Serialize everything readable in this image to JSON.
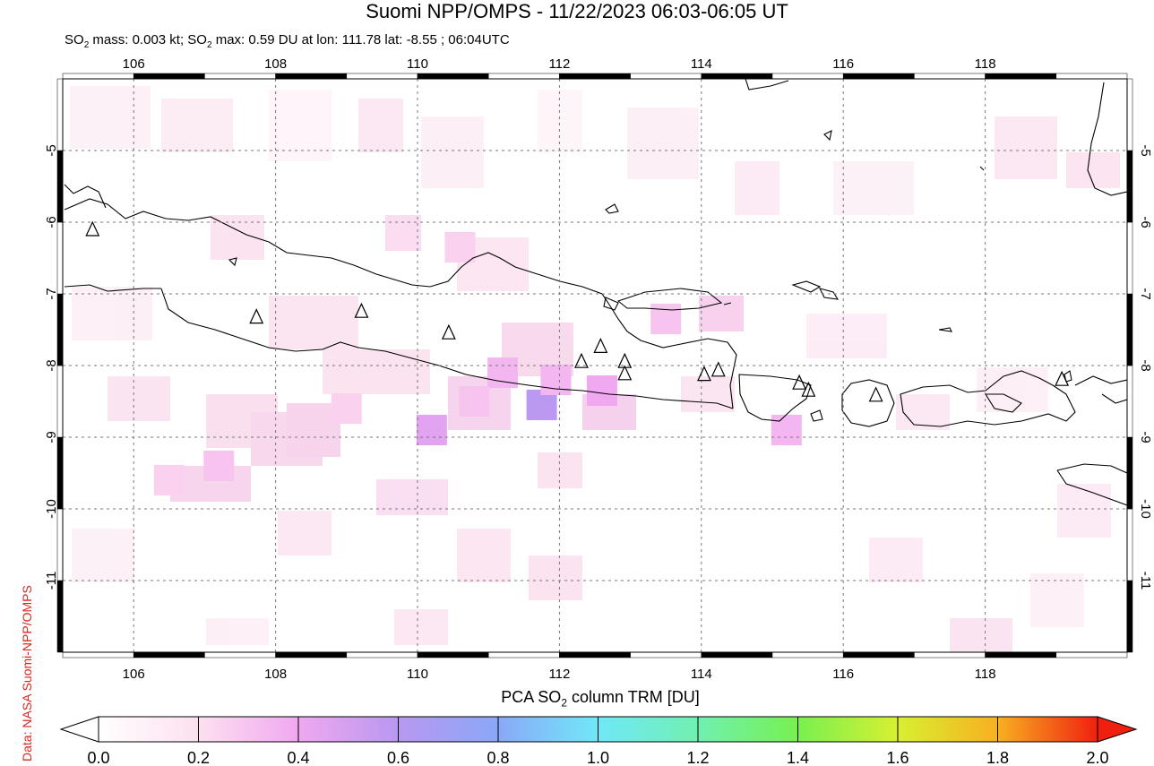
{
  "title": "Suomi NPP/OMPS - 11/22/2023 06:03-06:05 UT",
  "subtitle": {
    "prefix": "SO",
    "sub1": "2",
    "mid": " mass: 0.003 kt; SO",
    "sub2": "2",
    "suffix": " max: 0.59 DU at lon: 111.78 lat: -8.55 ; 06:04UTC"
  },
  "credit": "Data: NASA Suomi-NPP/OMPS",
  "map": {
    "lon_range": [
      105,
      120
    ],
    "lat_range": [
      -12,
      -4
    ],
    "lon_ticks": [
      "106",
      "108",
      "110",
      "112",
      "114",
      "116",
      "118"
    ],
    "lat_ticks": [
      "-5",
      "-6",
      "-7",
      "-8",
      "-9",
      "-10",
      "-11"
    ],
    "volcano_icon": "triangle-icon",
    "volcanoes": [
      {
        "lon": 105.42,
        "lat": -6.1
      },
      {
        "lon": 107.73,
        "lat": -7.32
      },
      {
        "lon": 109.21,
        "lat": -7.24
      },
      {
        "lon": 110.44,
        "lat": -7.54
      },
      {
        "lon": 112.31,
        "lat": -7.94
      },
      {
        "lon": 112.58,
        "lat": -7.73
      },
      {
        "lon": 112.92,
        "lat": -7.94
      },
      {
        "lon": 112.92,
        "lat": -8.11
      },
      {
        "lon": 114.04,
        "lat": -8.12
      },
      {
        "lon": 114.24,
        "lat": -8.06
      },
      {
        "lon": 115.38,
        "lat": -8.24
      },
      {
        "lon": 115.51,
        "lat": -8.34
      },
      {
        "lon": 116.46,
        "lat": -8.41
      },
      {
        "lon": 119.08,
        "lat": -8.19
      }
    ],
    "so2_pixels": [
      {
        "lon": 111.75,
        "lat": -8.55,
        "du": 0.59
      },
      {
        "lon": 110.2,
        "lat": -8.9,
        "du": 0.45
      },
      {
        "lon": 112.6,
        "lat": -8.35,
        "du": 0.4
      },
      {
        "lon": 111.2,
        "lat": -8.1,
        "du": 0.35
      },
      {
        "lon": 111.95,
        "lat": -8.2,
        "du": 0.35
      },
      {
        "lon": 115.2,
        "lat": -8.9,
        "du": 0.35
      },
      {
        "lon": 113.5,
        "lat": -7.35,
        "du": 0.3
      },
      {
        "lon": 110.8,
        "lat": -8.5,
        "du": 0.3
      },
      {
        "lon": 107.2,
        "lat": -9.4,
        "du": 0.3
      },
      {
        "lon": 109.0,
        "lat": -8.6,
        "du": 0.25
      },
      {
        "lon": 106.5,
        "lat": -9.6,
        "du": 0.25
      },
      {
        "lon": 110.6,
        "lat": -6.35,
        "du": 0.25
      }
    ]
  },
  "colorbar": {
    "title_prefix": "PCA SO",
    "title_sub": "2",
    "title_suffix": " column TRM [DU]",
    "ticks": [
      "0.0",
      "0.2",
      "0.4",
      "0.6",
      "0.8",
      "1.0",
      "1.2",
      "1.4",
      "1.6",
      "1.8",
      "2.0"
    ],
    "colors": [
      "#ffffff",
      "#fde0f0",
      "#f0a8f0",
      "#b898f0",
      "#8aa8f8",
      "#70e8f8",
      "#70f0b0",
      "#78f050",
      "#d8f030",
      "#f8b020",
      "#f02010"
    ]
  }
}
